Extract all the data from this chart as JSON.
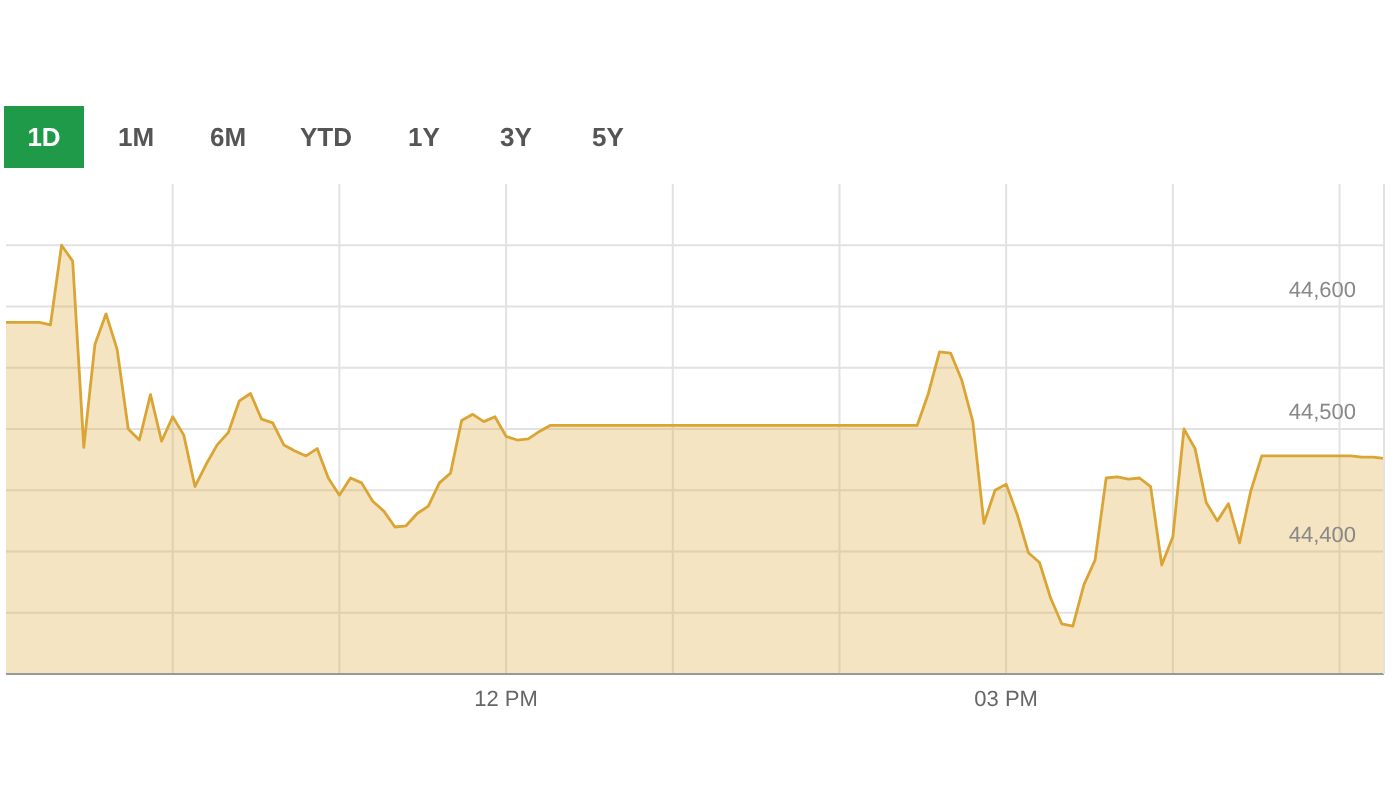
{
  "chart_data": {
    "type": "area",
    "annotations": [
      "1D",
      "1M",
      "6M",
      "YTD",
      "1Y",
      "3Y",
      "5Y"
    ],
    "categories": [
      null,
      null,
      null,
      null,
      null,
      null,
      null,
      null,
      null,
      null,
      null,
      null,
      null,
      null,
      null,
      null,
      null,
      null,
      null,
      null,
      null,
      null,
      null,
      null,
      null,
      null,
      null,
      null,
      null,
      null,
      null,
      null,
      null,
      null,
      null,
      null,
      null,
      null,
      null,
      null,
      null,
      null,
      null,
      null,
      null,
      "12 PM",
      null,
      null,
      null,
      null,
      null,
      null,
      null,
      null,
      null,
      null,
      null,
      null,
      null,
      null,
      null,
      null,
      null,
      null,
      null,
      null,
      null,
      null,
      null,
      null,
      null,
      null,
      null,
      null,
      null,
      null,
      null,
      null,
      null,
      null,
      null,
      null,
      null,
      null,
      null,
      null,
      null,
      null,
      null,
      null,
      "03 PM",
      null,
      null,
      null,
      null,
      null,
      null,
      null,
      null,
      null,
      null,
      null,
      null,
      null,
      null,
      null,
      null,
      null,
      null,
      null,
      null,
      null,
      null,
      null,
      null,
      null,
      null,
      null,
      null,
      null,
      null,
      null,
      null,
      null,
      null
    ],
    "series": [
      {
        "color": "#daa534",
        "values": [
          44587,
          44587,
          44587,
          44587,
          44585,
          44650,
          44637,
          44485,
          44569,
          44594,
          44565,
          44500,
          44491,
          44528,
          44490,
          44510,
          44495,
          44453,
          44471,
          44487,
          44497,
          44523,
          44529,
          44508,
          44505,
          44487,
          44482,
          44478,
          44484,
          44460,
          44446,
          44460,
          44456,
          44441,
          44433,
          44420,
          44421,
          44431,
          44437,
          44456,
          44464,
          44507,
          44512,
          44506,
          44510,
          44494,
          44491,
          44492,
          44498,
          44503,
          44503,
          44503,
          44503,
          44503,
          44503,
          44503,
          44503,
          44503,
          44503,
          44503,
          44503,
          44503,
          44503,
          44503,
          44503,
          44503,
          44503,
          44503,
          44503,
          44503,
          44503,
          44503,
          44503,
          44503,
          44503,
          44503,
          44503,
          44503,
          44503,
          44503,
          44503,
          44503,
          44503,
          44529,
          44563,
          44562,
          44540,
          44506,
          44423,
          44450,
          44455,
          44430,
          44399,
          44391,
          44362,
          44341,
          44339,
          44373,
          44393,
          44460,
          44461,
          44459,
          44460,
          44453,
          44389,
          44412,
          44500,
          44484,
          44440,
          44425,
          44439,
          44407,
          44449,
          44478,
          44478,
          44478,
          44478,
          44478,
          44478,
          44478,
          44478,
          44478,
          44477,
          44477,
          44476
        ]
      }
    ],
    "ylim": [
      44300,
      44700
    ],
    "yticks": [
      {
        "value": 44350,
        "label": null
      },
      {
        "value": 44400,
        "label": "44,400"
      },
      {
        "value": 44450,
        "label": null
      },
      {
        "value": 44500,
        "label": "44,500"
      },
      {
        "value": 44550,
        "label": null
      },
      {
        "value": 44600,
        "label": "44,600"
      },
      {
        "value": 44650,
        "label": null
      }
    ],
    "grid": true,
    "marker": "none"
  }
}
